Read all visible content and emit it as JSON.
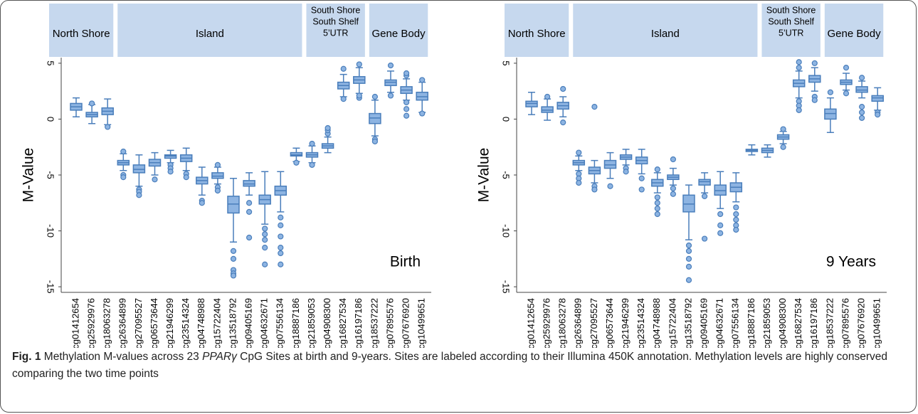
{
  "caption": {
    "label": "Fig. 1",
    "text_before": " Methylation M-values across 23 ",
    "italic": "PPARγ",
    "text_after": " CpG Sites at birth and 9-years. Sites are labeled according to their Illumina 450K annotation. Methylation levels are highly conserved comparing the two time points"
  },
  "chart_data": [
    {
      "type": "box",
      "y_label": "M-Value",
      "annotation": "Birth",
      "color": "#8db4e2",
      "edge_color": "#4a7ebb",
      "band_color": "#c6d8ee",
      "ylim": [
        -15.5,
        5.5
      ],
      "yticks": [
        5,
        0,
        -5,
        -10,
        -15
      ],
      "regions": [
        {
          "lines": [
            "North Shore"
          ],
          "sites": 3
        },
        {
          "lines": [
            "Island"
          ],
          "sites": 12
        },
        {
          "lines": [
            "South Shore",
            "South Shelf",
            "5’UTR"
          ],
          "sites": 4
        },
        {
          "lines": [
            "Gene Body"
          ],
          "sites": 4
        }
      ],
      "categories": [
        "cg01412654",
        "cg25929976",
        "cg18063278",
        "cg26364899",
        "cg27095527",
        "cg06573644",
        "cg21946299",
        "cg23514324",
        "cg04748988",
        "cg15722404",
        "cg13518792",
        "cg09405169",
        "cg04632671",
        "cg07556134",
        "cg18887186",
        "cg21859053",
        "cg04908300",
        "cg16827534",
        "cg16197186",
        "cg18537222",
        "cg07895576",
        "cg07676920",
        "cg10499651"
      ],
      "boxes": [
        {
          "low": 0.2,
          "q1": 0.8,
          "median": 1.1,
          "q3": 1.4,
          "high": 1.9,
          "outliers": []
        },
        {
          "low": -0.4,
          "q1": 0.2,
          "median": 0.4,
          "q3": 0.6,
          "high": 1.3,
          "outliers": [
            1.4
          ]
        },
        {
          "low": -0.5,
          "q1": 0.4,
          "median": 0.7,
          "q3": 1.0,
          "high": 1.8,
          "outliers": [
            -0.7
          ]
        },
        {
          "low": -4.6,
          "q1": -4.1,
          "median": -3.9,
          "q3": -3.7,
          "high": -3.1,
          "outliers": [
            -2.9,
            -5.0,
            -5.2
          ]
        },
        {
          "low": -6.0,
          "q1": -4.8,
          "median": -4.5,
          "q3": -4.1,
          "high": -3.2,
          "outliers": [
            -6.3,
            -6.5,
            -6.8
          ]
        },
        {
          "low": -5.0,
          "q1": -4.2,
          "median": -3.9,
          "q3": -3.6,
          "high": -3.0,
          "outliers": [
            -5.4
          ]
        },
        {
          "low": -3.9,
          "q1": -3.5,
          "median": -3.3,
          "q3": -3.2,
          "high": -2.8,
          "outliers": [
            -4.1,
            -4.4,
            -4.7
          ]
        },
        {
          "low": -4.6,
          "q1": -3.8,
          "median": -3.5,
          "q3": -3.2,
          "high": -2.6,
          "outliers": [
            -4.9,
            -5.2
          ]
        },
        {
          "low": -6.8,
          "q1": -5.8,
          "median": -5.5,
          "q3": -5.2,
          "high": -4.3,
          "outliers": [
            -7.3,
            -7.5
          ]
        },
        {
          "low": -5.8,
          "q1": -5.3,
          "median": -5.1,
          "q3": -4.8,
          "high": -4.3,
          "outliers": [
            -4.1,
            -6.1,
            -6.4
          ]
        },
        {
          "low": -11.0,
          "q1": -8.4,
          "median": -7.6,
          "q3": -6.9,
          "high": -5.3,
          "outliers": [
            -11.8,
            -12.5,
            -13.5,
            -13.8,
            -14.0
          ]
        },
        {
          "low": -6.8,
          "q1": -6.0,
          "median": -5.8,
          "q3": -5.5,
          "high": -4.8,
          "outliers": [
            -7.5,
            -8.3,
            -10.6
          ]
        },
        {
          "low": -9.4,
          "q1": -7.6,
          "median": -7.2,
          "q3": -6.8,
          "high": -4.7,
          "outliers": [
            -9.8,
            -10.3,
            -10.8,
            -11.5,
            -13.0
          ]
        },
        {
          "low": -8.3,
          "q1": -6.8,
          "median": -6.4,
          "q3": -6.0,
          "high": -4.7,
          "outliers": [
            -8.8,
            -9.5,
            -10.5,
            -11.5,
            -12.0,
            -13.0
          ]
        },
        {
          "low": -3.8,
          "q1": -3.3,
          "median": -3.2,
          "q3": -3.0,
          "high": -2.6,
          "outliers": [
            -3.9
          ]
        },
        {
          "low": -3.9,
          "q1": -3.4,
          "median": -3.2,
          "q3": -3.0,
          "high": -2.4,
          "outliers": [
            -2.2,
            -4.1
          ]
        },
        {
          "low": -3.0,
          "q1": -2.6,
          "median": -2.4,
          "q3": -2.2,
          "high": -1.6,
          "outliers": [
            -1.3,
            -1.0,
            -0.8
          ]
        },
        {
          "low": 2.0,
          "q1": 2.7,
          "median": 3.0,
          "q3": 3.3,
          "high": 4.0,
          "outliers": [
            1.8,
            4.5
          ]
        },
        {
          "low": 2.3,
          "q1": 3.2,
          "median": 3.5,
          "q3": 3.8,
          "high": 4.6,
          "outliers": [
            1.9,
            2.1,
            4.9
          ]
        },
        {
          "low": -1.5,
          "q1": -0.4,
          "median": 0.1,
          "q3": 0.5,
          "high": 1.7,
          "outliers": [
            -1.8,
            -2.0,
            2.0
          ]
        },
        {
          "low": 2.4,
          "q1": 3.0,
          "median": 3.3,
          "q3": 3.5,
          "high": 4.3,
          "outliers": [
            2.1,
            4.8
          ]
        },
        {
          "low": 1.7,
          "q1": 2.3,
          "median": 2.6,
          "q3": 2.9,
          "high": 3.6,
          "outliers": [
            1.5,
            0.9,
            0.3,
            3.9,
            4.1
          ]
        },
        {
          "low": 0.6,
          "q1": 1.7,
          "median": 2.0,
          "q3": 2.4,
          "high": 3.3,
          "outliers": [
            0.5,
            3.5
          ]
        }
      ]
    },
    {
      "type": "box",
      "y_label": "M-Value",
      "annotation": "9 Years",
      "color": "#8db4e2",
      "edge_color": "#4a7ebb",
      "band_color": "#c6d8ee",
      "ylim": [
        -15.5,
        5.5
      ],
      "yticks": [
        5,
        0,
        -5,
        -10,
        -15
      ],
      "regions": [
        {
          "lines": [
            "North Shore"
          ],
          "sites": 3
        },
        {
          "lines": [
            "Island"
          ],
          "sites": 12
        },
        {
          "lines": [
            "South Shore",
            "South Shelf",
            "5’UTR"
          ],
          "sites": 4
        },
        {
          "lines": [
            "Gene Body"
          ],
          "sites": 4
        }
      ],
      "categories": [
        "cg01412654",
        "cg25929976",
        "cg18063278",
        "cg26364899",
        "cg27095527",
        "cg06573644",
        "cg21946299",
        "cg23514324",
        "cg04748988",
        "cg15722404",
        "cg13518792",
        "cg09405169",
        "cg04632671",
        "cg07556134",
        "cg18887186",
        "cg21859053",
        "cg04908300",
        "cg16827534",
        "cg16197186",
        "cg18537222",
        "cg07895576",
        "cg07676920",
        "cg10499651"
      ],
      "boxes": [
        {
          "low": 0.4,
          "q1": 1.1,
          "median": 1.4,
          "q3": 1.6,
          "high": 2.4,
          "outliers": []
        },
        {
          "low": -0.1,
          "q1": 0.6,
          "median": 0.8,
          "q3": 1.1,
          "high": 1.8,
          "outliers": [
            2.0
          ]
        },
        {
          "low": 0.2,
          "q1": 0.9,
          "median": 1.2,
          "q3": 1.5,
          "high": 2.0,
          "outliers": [
            2.7,
            -0.3
          ]
        },
        {
          "low": -4.6,
          "q1": -4.1,
          "median": -3.9,
          "q3": -3.7,
          "high": -3.3,
          "outliers": [
            -3.0,
            -4.9,
            -5.3,
            -5.7
          ]
        },
        {
          "low": -5.7,
          "q1": -4.9,
          "median": -4.6,
          "q3": -4.3,
          "high": -3.7,
          "outliers": [
            1.1,
            -6.0,
            -6.3
          ]
        },
        {
          "low": -5.3,
          "q1": -4.4,
          "median": -4.1,
          "q3": -3.7,
          "high": -3.0,
          "outliers": [
            -6.0
          ]
        },
        {
          "low": -4.1,
          "q1": -3.6,
          "median": -3.4,
          "q3": -3.2,
          "high": -2.7,
          "outliers": [
            -4.4,
            -4.7
          ]
        },
        {
          "low": -4.9,
          "q1": -4.0,
          "median": -3.7,
          "q3": -3.4,
          "high": -2.7,
          "outliers": [
            -5.3,
            -6.3
          ]
        },
        {
          "low": -6.6,
          "q1": -6.0,
          "median": -5.7,
          "q3": -5.4,
          "high": -4.8,
          "outliers": [
            -4.5,
            -7.0,
            -7.5,
            -8.0,
            -8.5
          ]
        },
        {
          "low": -5.9,
          "q1": -5.4,
          "median": -5.2,
          "q3": -5.0,
          "high": -4.4,
          "outliers": [
            -3.6,
            -6.2,
            -6.7
          ]
        },
        {
          "low": -10.8,
          "q1": -8.3,
          "median": -7.6,
          "q3": -6.8,
          "high": -5.9,
          "outliers": [
            -11.3,
            -11.8,
            -12.5,
            -13.2,
            -14.4
          ]
        },
        {
          "low": -6.6,
          "q1": -5.9,
          "median": -5.6,
          "q3": -5.4,
          "high": -4.8,
          "outliers": [
            -6.9,
            -10.7
          ]
        },
        {
          "low": -8.0,
          "q1": -6.8,
          "median": -6.4,
          "q3": -5.9,
          "high": -4.7,
          "outliers": [
            -8.5,
            -9.5,
            -10.2
          ]
        },
        {
          "low": -7.4,
          "q1": -6.5,
          "median": -6.1,
          "q3": -5.7,
          "high": -4.8,
          "outliers": [
            -7.9,
            -8.5,
            -9.0,
            -9.5,
            -9.9
          ]
        },
        {
          "low": -3.2,
          "q1": -2.9,
          "median": -2.8,
          "q3": -2.7,
          "high": -2.3,
          "outliers": []
        },
        {
          "low": -3.4,
          "q1": -3.0,
          "median": -2.8,
          "q3": -2.6,
          "high": -2.3,
          "outliers": []
        },
        {
          "low": -2.2,
          "q1": -1.8,
          "median": -1.6,
          "q3": -1.4,
          "high": -1.1,
          "outliers": [
            -0.9,
            -2.5
          ]
        },
        {
          "low": 1.9,
          "q1": 2.9,
          "median": 3.2,
          "q3": 3.5,
          "high": 4.3,
          "outliers": [
            1.6,
            1.2,
            0.8,
            4.6,
            5.1
          ]
        },
        {
          "low": 2.5,
          "q1": 3.3,
          "median": 3.6,
          "q3": 3.9,
          "high": 4.6,
          "outliers": [
            2.0,
            1.7,
            5.0
          ]
        },
        {
          "low": -1.2,
          "q1": 0.0,
          "median": 0.5,
          "q3": 0.9,
          "high": 1.9,
          "outliers": [
            2.4
          ]
        },
        {
          "low": 2.6,
          "q1": 3.1,
          "median": 3.3,
          "q3": 3.5,
          "high": 4.1,
          "outliers": [
            2.3,
            4.6
          ]
        },
        {
          "low": 1.9,
          "q1": 2.4,
          "median": 2.6,
          "q3": 2.9,
          "high": 3.4,
          "outliers": [
            1.1,
            0.6,
            0.1,
            3.7
          ]
        },
        {
          "low": 0.8,
          "q1": 1.6,
          "median": 1.9,
          "q3": 2.1,
          "high": 2.8,
          "outliers": [
            0.6,
            0.4
          ]
        }
      ]
    }
  ]
}
